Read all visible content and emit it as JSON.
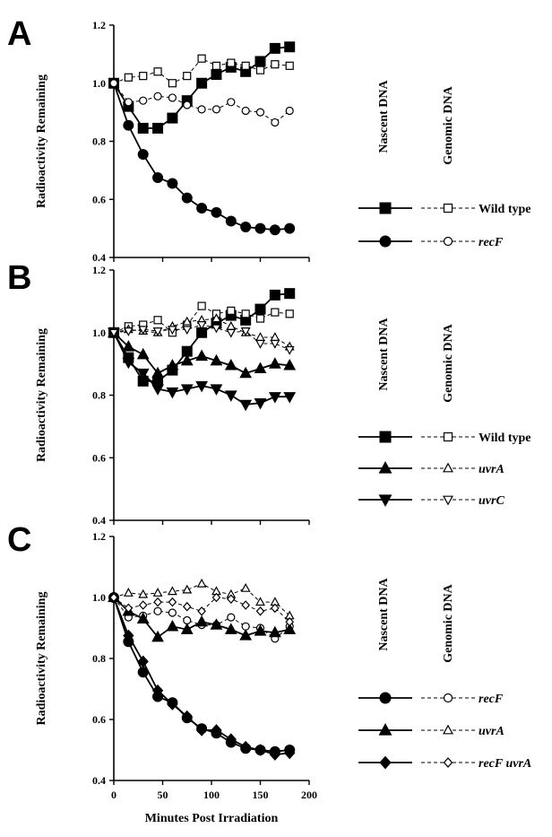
{
  "figure": {
    "xlabel": "Minutes Post Irradiation",
    "ylabel": "Radioactivity Remaining",
    "column_headers": [
      "Nascent DNA",
      "Genomic DNA"
    ]
  },
  "chart_data": [
    {
      "panel": "A",
      "type": "line",
      "xlim": [
        0,
        200
      ],
      "ylim": [
        0.4,
        1.2
      ],
      "xticks": [],
      "yticks": [
        "0.4",
        "0.6",
        "0.8",
        "1.0",
        "1.2"
      ],
      "series": [
        {
          "key": "A-wt-nascent",
          "marker": "square",
          "filled": true,
          "dashed": false,
          "x": [
            0,
            15,
            30,
            45,
            60,
            75,
            90,
            105,
            120,
            135,
            150,
            165,
            180
          ],
          "y": [
            1.0,
            0.92,
            0.845,
            0.845,
            0.88,
            0.94,
            1.0,
            1.03,
            1.055,
            1.04,
            1.075,
            1.12,
            1.125
          ]
        },
        {
          "key": "A-wt-genomic",
          "marker": "square",
          "filled": false,
          "dashed": true,
          "x": [
            0,
            15,
            30,
            45,
            60,
            75,
            90,
            105,
            120,
            135,
            150,
            165,
            180
          ],
          "y": [
            1.0,
            1.02,
            1.025,
            1.04,
            1.0,
            1.025,
            1.085,
            1.06,
            1.07,
            1.06,
            1.045,
            1.065,
            1.06
          ]
        },
        {
          "key": "A-recF-nascent",
          "marker": "circle",
          "filled": true,
          "dashed": false,
          "x": [
            0,
            15,
            30,
            45,
            60,
            75,
            90,
            105,
            120,
            135,
            150,
            165,
            180
          ],
          "y": [
            1.0,
            0.855,
            0.755,
            0.675,
            0.655,
            0.605,
            0.57,
            0.555,
            0.525,
            0.505,
            0.5,
            0.495,
            0.5
          ]
        },
        {
          "key": "A-recF-genomic",
          "marker": "circle",
          "filled": false,
          "dashed": true,
          "x": [
            0,
            15,
            30,
            45,
            60,
            75,
            90,
            105,
            120,
            135,
            150,
            165,
            180
          ],
          "y": [
            1.0,
            0.935,
            0.94,
            0.955,
            0.95,
            0.925,
            0.91,
            0.91,
            0.935,
            0.905,
            0.9,
            0.865,
            0.905
          ]
        }
      ],
      "legend": [
        {
          "marker": "square",
          "label": "Wild type",
          "italic": false
        },
        {
          "marker": "circle",
          "label": "recF",
          "italic": true
        }
      ]
    },
    {
      "panel": "B",
      "type": "line",
      "xlim": [
        0,
        200
      ],
      "ylim": [
        0.4,
        1.2
      ],
      "xticks": [],
      "yticks": [
        "0.4",
        "0.6",
        "0.8",
        "1.0",
        "1.2"
      ],
      "series": [
        {
          "key": "B-wt-nascent",
          "marker": "square",
          "filled": true,
          "dashed": false,
          "x": [
            0,
            15,
            30,
            45,
            60,
            75,
            90,
            105,
            120,
            135,
            150,
            165,
            180
          ],
          "y": [
            1.0,
            0.92,
            0.845,
            0.845,
            0.88,
            0.94,
            1.0,
            1.03,
            1.055,
            1.04,
            1.075,
            1.12,
            1.125
          ]
        },
        {
          "key": "B-wt-genomic",
          "marker": "square",
          "filled": false,
          "dashed": true,
          "x": [
            0,
            15,
            30,
            45,
            60,
            75,
            90,
            105,
            120,
            135,
            150,
            165,
            180
          ],
          "y": [
            1.0,
            1.02,
            1.025,
            1.04,
            1.0,
            1.025,
            1.085,
            1.06,
            1.07,
            1.06,
            1.045,
            1.065,
            1.06
          ]
        },
        {
          "key": "B-uvrA-nascent",
          "marker": "triangle",
          "filled": true,
          "dashed": false,
          "x": [
            0,
            15,
            30,
            45,
            60,
            75,
            90,
            105,
            120,
            135,
            150,
            165,
            180
          ],
          "y": [
            1.0,
            0.955,
            0.93,
            0.87,
            0.895,
            0.91,
            0.925,
            0.91,
            0.895,
            0.87,
            0.885,
            0.9,
            0.895
          ]
        },
        {
          "key": "B-uvrA-genomic",
          "marker": "triangle",
          "filled": false,
          "dashed": true,
          "x": [
            0,
            15,
            30,
            45,
            60,
            75,
            90,
            105,
            120,
            135,
            150,
            165,
            180
          ],
          "y": [
            1.0,
            1.01,
            1.005,
            1.0,
            1.02,
            1.035,
            1.04,
            1.045,
            1.02,
            1.0,
            0.985,
            0.985,
            0.955
          ]
        },
        {
          "key": "B-uvrC-nascent",
          "marker": "triangle-down",
          "filled": true,
          "dashed": false,
          "x": [
            0,
            15,
            30,
            45,
            60,
            75,
            90,
            105,
            120,
            135,
            150,
            165,
            180
          ],
          "y": [
            1.0,
            0.905,
            0.87,
            0.82,
            0.81,
            0.82,
            0.83,
            0.82,
            0.8,
            0.77,
            0.775,
            0.795,
            0.795
          ]
        },
        {
          "key": "B-uvrC-genomic",
          "marker": "triangle-down",
          "filled": false,
          "dashed": true,
          "x": [
            0,
            15,
            30,
            45,
            60,
            75,
            90,
            105,
            120,
            135,
            150,
            165,
            180
          ],
          "y": [
            1.0,
            1.005,
            1.01,
            1.005,
            1.01,
            1.01,
            1.025,
            1.015,
            1.0,
            1.005,
            0.965,
            0.965,
            0.945
          ]
        }
      ],
      "legend": [
        {
          "marker": "square",
          "label": "Wild type",
          "italic": false
        },
        {
          "marker": "triangle",
          "label": "uvrA",
          "italic": true
        },
        {
          "marker": "triangle-down",
          "label": "uvrC",
          "italic": true
        }
      ]
    },
    {
      "panel": "C",
      "type": "line",
      "xlim": [
        0,
        200
      ],
      "ylim": [
        0.4,
        1.2
      ],
      "xticks": [
        "0",
        "50",
        "100",
        "150",
        "200"
      ],
      "yticks": [
        "0.4",
        "0.6",
        "0.8",
        "1.0",
        "1.2"
      ],
      "series": [
        {
          "key": "C-recF-nascent",
          "marker": "circle",
          "filled": true,
          "dashed": false,
          "x": [
            0,
            15,
            30,
            45,
            60,
            75,
            90,
            105,
            120,
            135,
            150,
            165,
            180
          ],
          "y": [
            1.0,
            0.855,
            0.755,
            0.675,
            0.655,
            0.605,
            0.57,
            0.555,
            0.525,
            0.505,
            0.5,
            0.495,
            0.5
          ]
        },
        {
          "key": "C-recF-genomic",
          "marker": "circle",
          "filled": false,
          "dashed": true,
          "x": [
            0,
            15,
            30,
            45,
            60,
            75,
            90,
            105,
            120,
            135,
            150,
            165,
            180
          ],
          "y": [
            1.0,
            0.935,
            0.94,
            0.955,
            0.95,
            0.925,
            0.91,
            0.91,
            0.935,
            0.905,
            0.9,
            0.865,
            0.905
          ]
        },
        {
          "key": "C-uvrA-nascent",
          "marker": "triangle",
          "filled": true,
          "dashed": false,
          "x": [
            0,
            15,
            30,
            45,
            60,
            75,
            90,
            105,
            120,
            135,
            150,
            165,
            180
          ],
          "y": [
            1.0,
            0.955,
            0.93,
            0.87,
            0.905,
            0.895,
            0.92,
            0.91,
            0.895,
            0.875,
            0.89,
            0.885,
            0.895
          ]
        },
        {
          "key": "C-uvrA-genomic",
          "marker": "triangle",
          "filled": false,
          "dashed": true,
          "x": [
            0,
            15,
            30,
            45,
            60,
            75,
            90,
            105,
            120,
            135,
            150,
            165,
            180
          ],
          "y": [
            1.0,
            1.015,
            1.01,
            1.015,
            1.02,
            1.025,
            1.045,
            1.02,
            1.01,
            1.03,
            0.985,
            0.985,
            0.94
          ]
        },
        {
          "key": "C-recFuvrA-nascent",
          "marker": "diamond",
          "filled": true,
          "dashed": false,
          "x": [
            0,
            15,
            30,
            45,
            60,
            75,
            90,
            105,
            120,
            135,
            150,
            165,
            180
          ],
          "y": [
            1.0,
            0.875,
            0.79,
            0.695,
            0.65,
            0.61,
            0.565,
            0.565,
            0.535,
            0.51,
            0.5,
            0.485,
            0.49
          ]
        },
        {
          "key": "C-recFuvrA-genomic",
          "marker": "diamond",
          "filled": false,
          "dashed": true,
          "x": [
            0,
            15,
            30,
            45,
            60,
            75,
            90,
            105,
            120,
            135,
            150,
            165,
            180
          ],
          "y": [
            1.0,
            0.965,
            0.975,
            0.985,
            0.985,
            0.97,
            0.955,
            1.0,
            0.995,
            0.975,
            0.955,
            0.965,
            0.92
          ]
        }
      ],
      "legend": [
        {
          "marker": "circle",
          "label": "recF",
          "italic": true
        },
        {
          "marker": "triangle",
          "label": "uvrA",
          "italic": true
        },
        {
          "marker": "diamond",
          "label": "recF  uvrA",
          "italic": true
        }
      ]
    }
  ]
}
